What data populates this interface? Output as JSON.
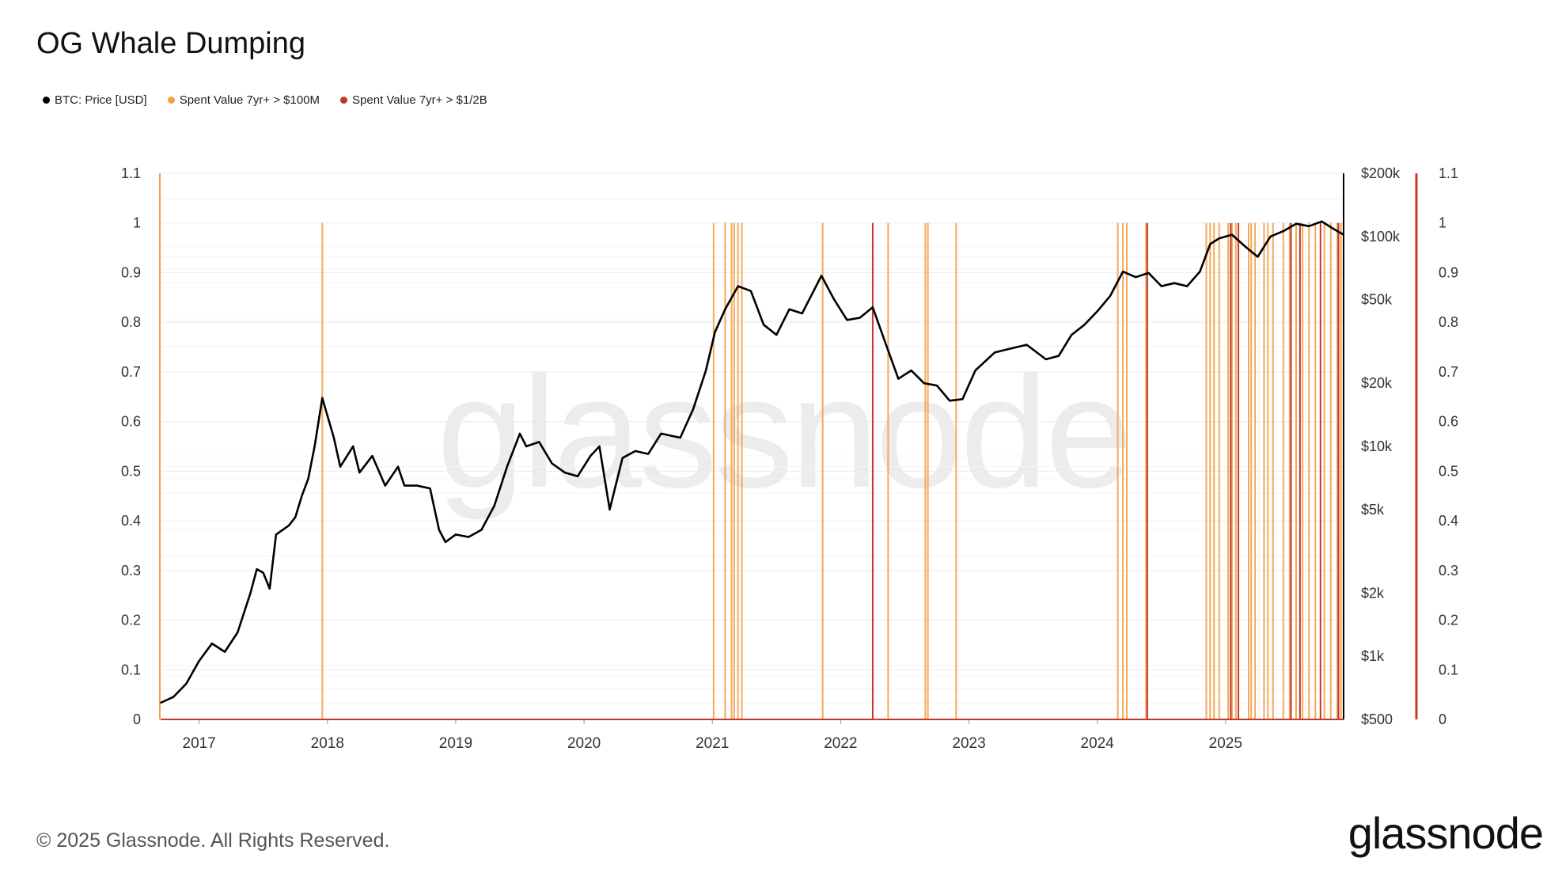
{
  "title": "OG Whale Dumping",
  "legend": [
    {
      "label": "BTC: Price [USD]",
      "color": "#000000"
    },
    {
      "label": "Spent Value 7yr+ > $100M",
      "color": "#f5a04a"
    },
    {
      "label": "Spent Value 7yr+ > $1/2B",
      "color": "#c0392b"
    }
  ],
  "footer": "© 2025 Glassnode. All Rights Reserved.",
  "brand": "glassnode",
  "watermark": "glassnode",
  "chart_data": {
    "type": "line",
    "left_axis": {
      "ylim": [
        0,
        1.1
      ],
      "ticks": [
        0,
        0.1,
        0.2,
        0.3,
        0.4,
        0.5,
        0.6,
        0.7,
        0.8,
        0.9,
        1,
        1.1
      ]
    },
    "right_axis_indicator": {
      "ylim": [
        0,
        1.1
      ],
      "ticks": [
        0,
        0.1,
        0.2,
        0.3,
        0.4,
        0.5,
        0.6,
        0.7,
        0.8,
        0.9,
        1,
        1.1
      ]
    },
    "price_axis": {
      "scale": "log",
      "ylim": [
        500,
        200000
      ],
      "ticks": [
        {
          "value": 500,
          "label": "$500"
        },
        {
          "value": 1000,
          "label": "$1k"
        },
        {
          "value": 2000,
          "label": "$2k"
        },
        {
          "value": 5000,
          "label": "$5k"
        },
        {
          "value": 10000,
          "label": "$10k"
        },
        {
          "value": 20000,
          "label": "$20k"
        },
        {
          "value": 50000,
          "label": "$50k"
        },
        {
          "value": 100000,
          "label": "$100k"
        },
        {
          "value": 200000,
          "label": "$200k"
        }
      ]
    },
    "x_range": [
      2016.7,
      2025.92
    ],
    "x_ticks": [
      {
        "value": 2017,
        "label": "2017"
      },
      {
        "value": 2018,
        "label": "2018"
      },
      {
        "value": 2019,
        "label": "2019"
      },
      {
        "value": 2020,
        "label": "2020"
      },
      {
        "value": 2021,
        "label": "2021"
      },
      {
        "value": 2022,
        "label": "2022"
      },
      {
        "value": 2023,
        "label": "2023"
      },
      {
        "value": 2024,
        "label": "2024"
      },
      {
        "value": 2025,
        "label": "2025"
      }
    ],
    "series": [
      {
        "name": "BTC: Price [USD]",
        "color": "#000000",
        "points": [
          [
            2016.7,
            600
          ],
          [
            2016.8,
            640
          ],
          [
            2016.9,
            740
          ],
          [
            2017.0,
            950
          ],
          [
            2017.1,
            1150
          ],
          [
            2017.2,
            1050
          ],
          [
            2017.3,
            1300
          ],
          [
            2017.4,
            2000
          ],
          [
            2017.45,
            2600
          ],
          [
            2017.5,
            2500
          ],
          [
            2017.55,
            2100
          ],
          [
            2017.6,
            3800
          ],
          [
            2017.7,
            4200
          ],
          [
            2017.75,
            4600
          ],
          [
            2017.8,
            5800
          ],
          [
            2017.85,
            7000
          ],
          [
            2017.9,
            10000
          ],
          [
            2017.96,
            17000
          ],
          [
            2018.0,
            14000
          ],
          [
            2018.05,
            11000
          ],
          [
            2018.1,
            8000
          ],
          [
            2018.2,
            10000
          ],
          [
            2018.25,
            7500
          ],
          [
            2018.35,
            9000
          ],
          [
            2018.45,
            6500
          ],
          [
            2018.55,
            8000
          ],
          [
            2018.6,
            6500
          ],
          [
            2018.7,
            6500
          ],
          [
            2018.8,
            6300
          ],
          [
            2018.87,
            4000
          ],
          [
            2018.92,
            3500
          ],
          [
            2019.0,
            3800
          ],
          [
            2019.1,
            3700
          ],
          [
            2019.2,
            4000
          ],
          [
            2019.3,
            5200
          ],
          [
            2019.4,
            8000
          ],
          [
            2019.5,
            11500
          ],
          [
            2019.55,
            10000
          ],
          [
            2019.65,
            10500
          ],
          [
            2019.75,
            8300
          ],
          [
            2019.85,
            7500
          ],
          [
            2019.95,
            7200
          ],
          [
            2020.05,
            9000
          ],
          [
            2020.12,
            10000
          ],
          [
            2020.2,
            5000
          ],
          [
            2020.3,
            8800
          ],
          [
            2020.4,
            9500
          ],
          [
            2020.5,
            9200
          ],
          [
            2020.6,
            11500
          ],
          [
            2020.75,
            11000
          ],
          [
            2020.85,
            15000
          ],
          [
            2020.95,
            23000
          ],
          [
            2021.02,
            35000
          ],
          [
            2021.1,
            45000
          ],
          [
            2021.2,
            58000
          ],
          [
            2021.3,
            55000
          ],
          [
            2021.4,
            38000
          ],
          [
            2021.5,
            34000
          ],
          [
            2021.6,
            45000
          ],
          [
            2021.7,
            43000
          ],
          [
            2021.85,
            65000
          ],
          [
            2021.95,
            50000
          ],
          [
            2022.05,
            40000
          ],
          [
            2022.15,
            41000
          ],
          [
            2022.25,
            46000
          ],
          [
            2022.35,
            31000
          ],
          [
            2022.45,
            21000
          ],
          [
            2022.55,
            23000
          ],
          [
            2022.65,
            20000
          ],
          [
            2022.75,
            19500
          ],
          [
            2022.85,
            16500
          ],
          [
            2022.95,
            16800
          ],
          [
            2023.05,
            23000
          ],
          [
            2023.2,
            28000
          ],
          [
            2023.3,
            29000
          ],
          [
            2023.45,
            30500
          ],
          [
            2023.6,
            26000
          ],
          [
            2023.7,
            27000
          ],
          [
            2023.8,
            34000
          ],
          [
            2023.9,
            38000
          ],
          [
            2024.0,
            44000
          ],
          [
            2024.1,
            52000
          ],
          [
            2024.2,
            68000
          ],
          [
            2024.3,
            64000
          ],
          [
            2024.4,
            67000
          ],
          [
            2024.5,
            58000
          ],
          [
            2024.6,
            60000
          ],
          [
            2024.7,
            58000
          ],
          [
            2024.8,
            68000
          ],
          [
            2024.88,
            92000
          ],
          [
            2024.95,
            98000
          ],
          [
            2025.05,
            102000
          ],
          [
            2025.15,
            90000
          ],
          [
            2025.25,
            80000
          ],
          [
            2025.35,
            100000
          ],
          [
            2025.45,
            106000
          ],
          [
            2025.55,
            115000
          ],
          [
            2025.65,
            112000
          ],
          [
            2025.75,
            118000
          ],
          [
            2025.85,
            108000
          ],
          [
            2025.92,
            102000
          ]
        ]
      },
      {
        "name": "Spent Value 7yr+ > $100M",
        "color": "#f5a04a",
        "events": [
          2017.96,
          2021.01,
          2021.1,
          2021.15,
          2021.17,
          2021.2,
          2021.23,
          2021.86,
          2022.37,
          2022.66,
          2022.68,
          2022.9,
          2024.16,
          2024.2,
          2024.23,
          2024.38,
          2024.85,
          2024.88,
          2024.91,
          2024.95,
          2025.02,
          2025.05,
          2025.08,
          2025.18,
          2025.2,
          2025.23,
          2025.3,
          2025.33,
          2025.37,
          2025.45,
          2025.5,
          2025.55,
          2025.6,
          2025.65,
          2025.7,
          2025.77,
          2025.82,
          2025.87,
          2025.9
        ]
      },
      {
        "name": "Spent Value 7yr+ > $1/2B",
        "color": "#c0392b",
        "events": [
          2022.25,
          2024.39,
          2025.04,
          2025.1,
          2025.51,
          2025.58,
          2025.74,
          2025.88
        ]
      }
    ]
  }
}
